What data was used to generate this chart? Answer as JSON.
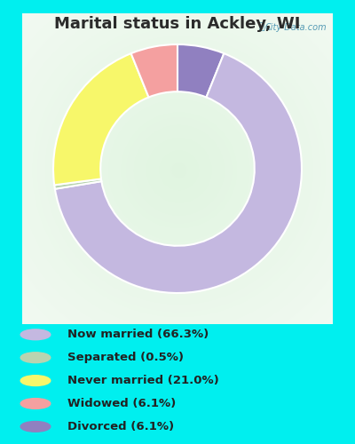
{
  "title": "Marital status in Ackley, WI",
  "title_color": "#2b2b2b",
  "title_fontsize": 13,
  "bg_cyan": "#00efef",
  "chart_bg_color": "#daf0da",
  "slices": [
    {
      "label": "Now married (66.3%)",
      "value": 66.3,
      "color": "#c4b8e0"
    },
    {
      "label": "Separated (0.5%)",
      "value": 0.5,
      "color": "#b8d4b0"
    },
    {
      "label": "Never married (21.0%)",
      "value": 21.0,
      "color": "#f7f76a"
    },
    {
      "label": "Widowed (6.1%)",
      "value": 6.1,
      "color": "#f4a0a0"
    },
    {
      "label": "Divorced (6.1%)",
      "value": 6.1,
      "color": "#9080c0"
    }
  ],
  "start_order": [
    "Divorced (6.1%)",
    "Now married (66.3%)",
    "Separated (0.5%)",
    "Never married (21.0%)",
    "Widowed (6.1%)"
  ],
  "donut_width": 0.38,
  "figsize": [
    4.0,
    5.0
  ],
  "dpi": 100,
  "legend_labels": [
    "Now married (66.3%)",
    "Separated (0.5%)",
    "Never married (21.0%)",
    "Widowed (6.1%)",
    "Divorced (6.1%)"
  ],
  "legend_colors": [
    "#c4b8e0",
    "#b8d4b0",
    "#f7f76a",
    "#f4a0a0",
    "#9080c0"
  ]
}
